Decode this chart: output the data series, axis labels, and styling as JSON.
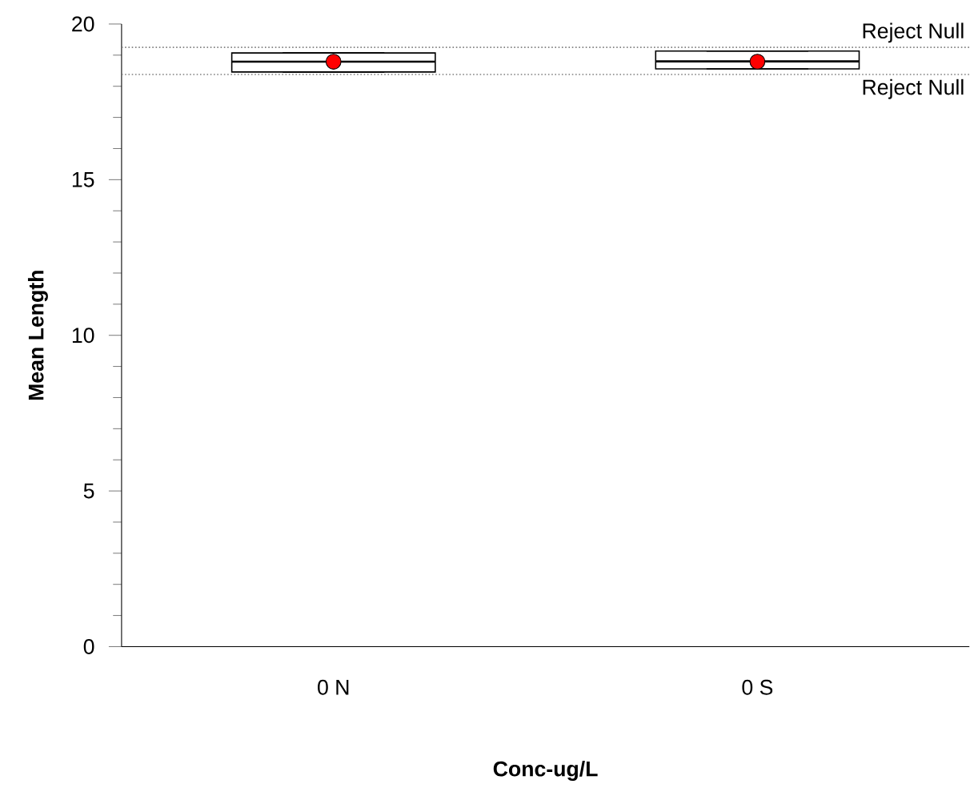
{
  "chart_data": {
    "type": "box",
    "xlabel": "Conc-ug/L",
    "ylabel": "Mean Length",
    "categories": [
      "0 N",
      "0 S"
    ],
    "boxes": [
      {
        "low": 18.46,
        "q1": 18.46,
        "median": 18.79,
        "q3": 19.07,
        "high": 19.07
      },
      {
        "low": 18.56,
        "q1": 18.56,
        "median": 18.8,
        "q3": 19.13,
        "high": 19.13
      }
    ],
    "series": [
      {
        "type": "scatter",
        "color": "#ff0000",
        "x": [
          "0 N",
          "0 S"
        ],
        "values": [
          18.79,
          18.79
        ]
      }
    ],
    "ylim": [
      0,
      20
    ],
    "yticks": [
      0,
      5,
      10,
      15,
      20
    ],
    "ref_lines": [
      {
        "axis": "y",
        "value": 19.25,
        "label": "Reject Null",
        "color": "#808080",
        "line_style": "dotted"
      },
      {
        "axis": "y",
        "value": 18.38,
        "label": "Reject Null",
        "color": "#808080",
        "line_style": "dotted"
      }
    ],
    "grid": false
  }
}
